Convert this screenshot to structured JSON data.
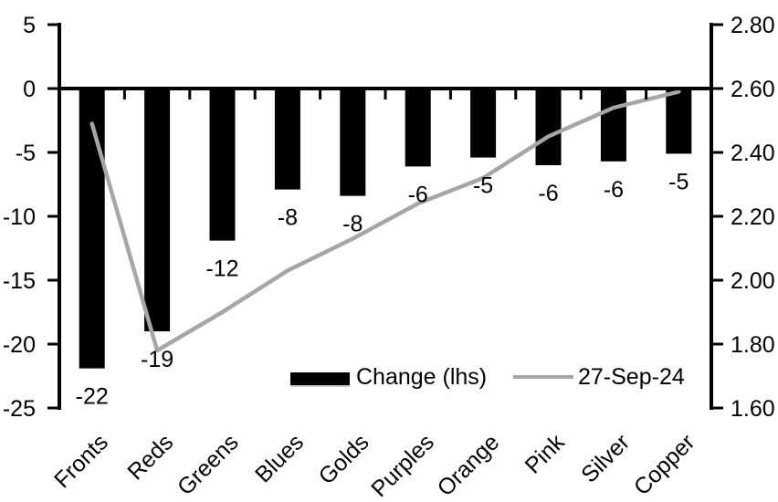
{
  "chart_data": {
    "type": "bar-line-combo",
    "title": "",
    "categories": [
      "Fronts",
      "Reds",
      "Greens",
      "Blues",
      "Golds",
      "Purples",
      "Orange",
      "Pink",
      "Silver",
      "Copper"
    ],
    "series": [
      {
        "name": "Change (lhs)",
        "type": "bar",
        "axis": "left",
        "color": "#000000",
        "values": [
          -22,
          -19,
          -12,
          -8,
          -8,
          -6,
          -5,
          -6,
          -6,
          -5
        ],
        "values_precise": [
          -21.9,
          -19.0,
          -11.9,
          -7.9,
          -8.4,
          -6.1,
          -5.4,
          -6.0,
          -5.7,
          -5.1
        ],
        "data_labels": [
          "-22",
          "-19",
          "-12",
          "-8",
          "-8",
          "-6",
          "-5",
          "-6",
          "-6",
          "-5"
        ]
      },
      {
        "name": "27-Sep-24",
        "type": "line",
        "axis": "right",
        "color": "#a6a6a6",
        "values": [
          2.49,
          1.78,
          1.9,
          2.03,
          2.13,
          2.24,
          2.32,
          2.45,
          2.54,
          2.59
        ]
      }
    ],
    "left_axis": {
      "min": -25,
      "max": 5,
      "step": 5,
      "tick_labels": [
        "5",
        "0",
        "-5",
        "-10",
        "-15",
        "-20",
        "-25"
      ]
    },
    "right_axis": {
      "min": 1.6,
      "max": 2.8,
      "step": 0.2,
      "tick_labels": [
        "2.80",
        "2.60",
        "2.40",
        "2.20",
        "2.00",
        "1.80",
        "1.60"
      ]
    },
    "legend": {
      "position": "bottom-center-inside",
      "items": [
        {
          "label": "Change (lhs)",
          "swatch": "bar",
          "color": "#000000"
        },
        {
          "label": "27-Sep-24",
          "swatch": "line",
          "color": "#a6a6a6"
        }
      ]
    },
    "grid": false,
    "background": "#ffffff"
  }
}
